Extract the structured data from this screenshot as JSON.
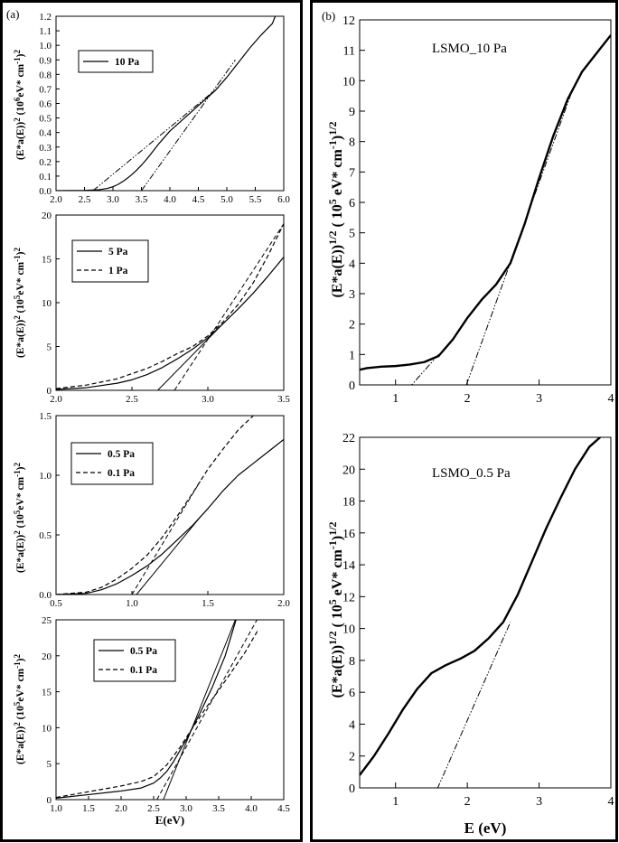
{
  "panels": [
    {
      "id": "a",
      "label": "(a)"
    },
    {
      "id": "b",
      "label": "(b)"
    }
  ],
  "chart_data": [
    {
      "type": "line",
      "panel": "a",
      "ylabel": "(E*a(E))2 (10^6eV* cm^-1)2",
      "xlim": [
        2.0,
        6.0
      ],
      "ylim": [
        0.0,
        1.2
      ],
      "xticks": [
        2.0,
        2.5,
        3.0,
        3.5,
        4.0,
        4.5,
        5.0,
        5.5,
        6.0
      ],
      "yticks": [
        0.0,
        0.1,
        0.2,
        0.3,
        0.4,
        0.5,
        0.6,
        0.7,
        0.8,
        0.9,
        1.0,
        1.1,
        1.2
      ],
      "series": [
        {
          "name": "10 Pa",
          "style": "solid",
          "x": [
            2.0,
            2.5,
            2.75,
            2.9,
            3.0,
            3.1,
            3.2,
            3.3,
            3.4,
            3.5,
            3.6,
            3.7,
            3.8,
            3.9,
            4.0,
            4.2,
            4.4,
            4.6,
            4.8,
            5.0,
            5.2,
            5.4,
            5.6,
            5.8,
            5.85
          ],
          "y": [
            0.0,
            0.002,
            0.006,
            0.015,
            0.027,
            0.045,
            0.07,
            0.1,
            0.135,
            0.175,
            0.22,
            0.27,
            0.32,
            0.365,
            0.41,
            0.48,
            0.55,
            0.62,
            0.69,
            0.78,
            0.88,
            0.98,
            1.07,
            1.15,
            1.2
          ]
        }
      ],
      "fits": [
        {
          "style": "dashdotdot",
          "x": [
            2.65,
            4.85
          ],
          "y": [
            0.0,
            0.71
          ]
        },
        {
          "style": "dashdotdot",
          "x": [
            3.5,
            5.15
          ],
          "y": [
            0.0,
            0.9
          ]
        }
      ],
      "legend": {
        "position": "top-left",
        "entries": [
          "10 Pa"
        ]
      }
    },
    {
      "type": "line",
      "panel": "a",
      "ylabel": "(E*a(E))2 (10^5eV* cm^-1)2",
      "xlim": [
        2.0,
        3.5
      ],
      "ylim": [
        0,
        20
      ],
      "xticks": [
        2.0,
        2.5,
        3.0,
        3.5
      ],
      "yticks": [
        0,
        5,
        10,
        15,
        20
      ],
      "series": [
        {
          "name": "5 Pa",
          "style": "solid",
          "x": [
            2.0,
            2.2,
            2.4,
            2.5,
            2.6,
            2.7,
            2.8,
            2.9,
            3.0,
            3.1,
            3.2,
            3.3,
            3.4,
            3.5
          ],
          "y": [
            0.1,
            0.3,
            0.8,
            1.2,
            1.8,
            2.6,
            3.6,
            4.7,
            6.0,
            7.6,
            9.3,
            11.1,
            13.1,
            15.2
          ]
        },
        {
          "name": "1 Pa",
          "style": "dashed",
          "x": [
            2.0,
            2.2,
            2.4,
            2.5,
            2.6,
            2.7,
            2.8,
            2.9,
            3.0,
            3.1,
            3.2,
            3.3,
            3.4,
            3.5
          ],
          "y": [
            0.2,
            0.6,
            1.3,
            1.9,
            2.5,
            3.3,
            4.2,
            5.0,
            6.2,
            7.8,
            9.8,
            12.3,
            15.5,
            19.0
          ]
        }
      ],
      "fits": [
        {
          "style": "solid",
          "x": [
            2.67,
            3.1
          ],
          "y": [
            0.0,
            7.6
          ]
        },
        {
          "style": "dashed",
          "x": [
            2.78,
            3.5
          ],
          "y": [
            0.0,
            19.0
          ]
        }
      ],
      "legend": {
        "position": "top-right",
        "entries": [
          "5 Pa",
          "1 Pa"
        ]
      }
    },
    {
      "type": "line",
      "panel": "a",
      "ylabel": "(E*a(E))2 (10^5eV* cm^-1)2",
      "xlim": [
        0.5,
        2.0
      ],
      "ylim": [
        0.0,
        1.5
      ],
      "xticks": [
        0.5,
        1.0,
        1.5,
        2.0
      ],
      "yticks": [
        0.0,
        0.5,
        1.0,
        1.5
      ],
      "series": [
        {
          "name": "0.5 Pa",
          "style": "solid",
          "x": [
            0.5,
            0.7,
            0.8,
            0.9,
            1.0,
            1.1,
            1.2,
            1.3,
            1.4,
            1.5,
            1.6,
            1.7,
            1.8,
            1.9,
            2.0
          ],
          "y": [
            0.0,
            0.01,
            0.04,
            0.09,
            0.16,
            0.24,
            0.34,
            0.46,
            0.58,
            0.72,
            0.87,
            1.0,
            1.1,
            1.2,
            1.3
          ]
        },
        {
          "name": "0.1 Pa",
          "style": "dashed",
          "x": [
            0.5,
            0.7,
            0.8,
            0.9,
            1.0,
            1.1,
            1.2,
            1.3,
            1.4,
            1.5,
            1.6,
            1.7,
            1.8
          ],
          "y": [
            0.0,
            0.02,
            0.06,
            0.13,
            0.22,
            0.33,
            0.48,
            0.66,
            0.85,
            1.05,
            1.22,
            1.38,
            1.5
          ]
        }
      ],
      "fits": [
        {
          "style": "solid",
          "x": [
            1.03,
            1.45
          ],
          "y": [
            0.0,
            0.65
          ]
        },
        {
          "style": "dashed",
          "x": [
            1.0,
            1.45
          ],
          "y": [
            0.0,
            0.95
          ]
        }
      ],
      "legend": {
        "position": "top-left",
        "entries": [
          "0.5 Pa",
          "0.1 Pa"
        ]
      }
    },
    {
      "type": "line",
      "panel": "a",
      "ylabel": "(E*a(E))2 (10^5eV* cm^-1)2",
      "xlabel": "E(eV)",
      "xlim": [
        1.0,
        4.5
      ],
      "ylim": [
        0,
        25
      ],
      "xticks": [
        1.0,
        1.5,
        2.0,
        2.5,
        3.0,
        3.5,
        4.0,
        4.5
      ],
      "yticks": [
        0,
        5,
        10,
        15,
        20,
        25
      ],
      "series": [
        {
          "name": "0.5 Pa",
          "style": "solid",
          "x": [
            1.0,
            1.5,
            2.0,
            2.3,
            2.5,
            2.6,
            2.7,
            2.8,
            3.0,
            3.2,
            3.4,
            3.6,
            3.8
          ],
          "y": [
            0.2,
            0.7,
            1.2,
            1.6,
            2.3,
            3.0,
            3.9,
            5.2,
            8.3,
            11.8,
            15.6,
            20.0,
            26.0
          ]
        },
        {
          "name": "0.1 Pa",
          "style": "dashed",
          "x": [
            1.0,
            1.5,
            2.0,
            2.3,
            2.5,
            2.7,
            2.9,
            3.1,
            3.3,
            3.5,
            3.7,
            3.9,
            4.1
          ],
          "y": [
            0.3,
            1.1,
            1.9,
            2.5,
            3.2,
            4.8,
            7.2,
            10.0,
            12.7,
            15.2,
            17.8,
            20.4,
            23.5
          ]
        }
      ],
      "fits": [
        {
          "style": "solid",
          "x": [
            2.65,
            3.8
          ],
          "y": [
            0.0,
            26.0
          ]
        },
        {
          "style": "dashed",
          "x": [
            2.55,
            4.15
          ],
          "y": [
            0.0,
            26.0
          ]
        }
      ],
      "legend": {
        "position": "top-center",
        "entries": [
          "0.5 Pa",
          "0.1 Pa"
        ]
      }
    },
    {
      "type": "line",
      "panel": "b",
      "annotation": "LSMO_10 Pa",
      "ylabel": "(E*a(E))1/2 ( 10^5 eV* cm^-1)1/2",
      "xlim": [
        0.5,
        4.0
      ],
      "ylim": [
        0,
        12
      ],
      "xticks": [
        1,
        2,
        3,
        4
      ],
      "yticks": [
        0,
        1,
        2,
        3,
        4,
        5,
        6,
        7,
        8,
        9,
        10,
        11,
        12
      ],
      "series": [
        {
          "name": "LSMO_10 Pa",
          "style": "solid",
          "x": [
            0.5,
            0.6,
            0.8,
            1.0,
            1.2,
            1.4,
            1.6,
            1.8,
            2.0,
            2.2,
            2.4,
            2.6,
            2.8,
            3.0,
            3.2,
            3.4,
            3.6,
            3.8,
            4.0
          ],
          "y": [
            0.5,
            0.55,
            0.6,
            0.62,
            0.67,
            0.75,
            0.95,
            1.5,
            2.2,
            2.8,
            3.3,
            4.0,
            5.3,
            6.8,
            8.2,
            9.4,
            10.3,
            10.9,
            11.5
          ]
        }
      ],
      "fits": [
        {
          "style": "dashdotdot",
          "x": [
            1.15,
            1.6
          ],
          "y": [
            -0.2,
            1.0
          ]
        },
        {
          "style": "dashdotdot",
          "x": [
            1.85,
            3.45
          ],
          "y": [
            -0.9,
            9.6
          ]
        }
      ]
    },
    {
      "type": "line",
      "panel": "b",
      "annotation": "LSMO_0.5 Pa",
      "ylabel": "(E*a(E))1/2 ( 10^5 eV* cm^-1)1/2",
      "xlabel": "E (eV)",
      "xlim": [
        0.5,
        4.0
      ],
      "ylim": [
        0,
        22
      ],
      "xticks": [
        1,
        2,
        3,
        4
      ],
      "yticks": [
        0,
        2,
        4,
        6,
        8,
        10,
        12,
        14,
        16,
        18,
        20,
        22
      ],
      "series": [
        {
          "name": "LSMO_0.5 Pa",
          "style": "solid",
          "x": [
            0.5,
            0.7,
            0.9,
            1.1,
            1.3,
            1.5,
            1.7,
            1.9,
            2.1,
            2.3,
            2.5,
            2.7,
            2.9,
            3.1,
            3.3,
            3.5,
            3.7,
            3.85
          ],
          "y": [
            0.8,
            2.0,
            3.4,
            4.9,
            6.2,
            7.2,
            7.7,
            8.1,
            8.6,
            9.4,
            10.4,
            12.1,
            14.2,
            16.3,
            18.2,
            20.0,
            21.4,
            22.0
          ]
        }
      ],
      "fits": [
        {
          "style": "dashdotdot",
          "x": [
            1.5,
            2.6
          ],
          "y": [
            -0.9,
            10.4
          ]
        }
      ]
    }
  ]
}
